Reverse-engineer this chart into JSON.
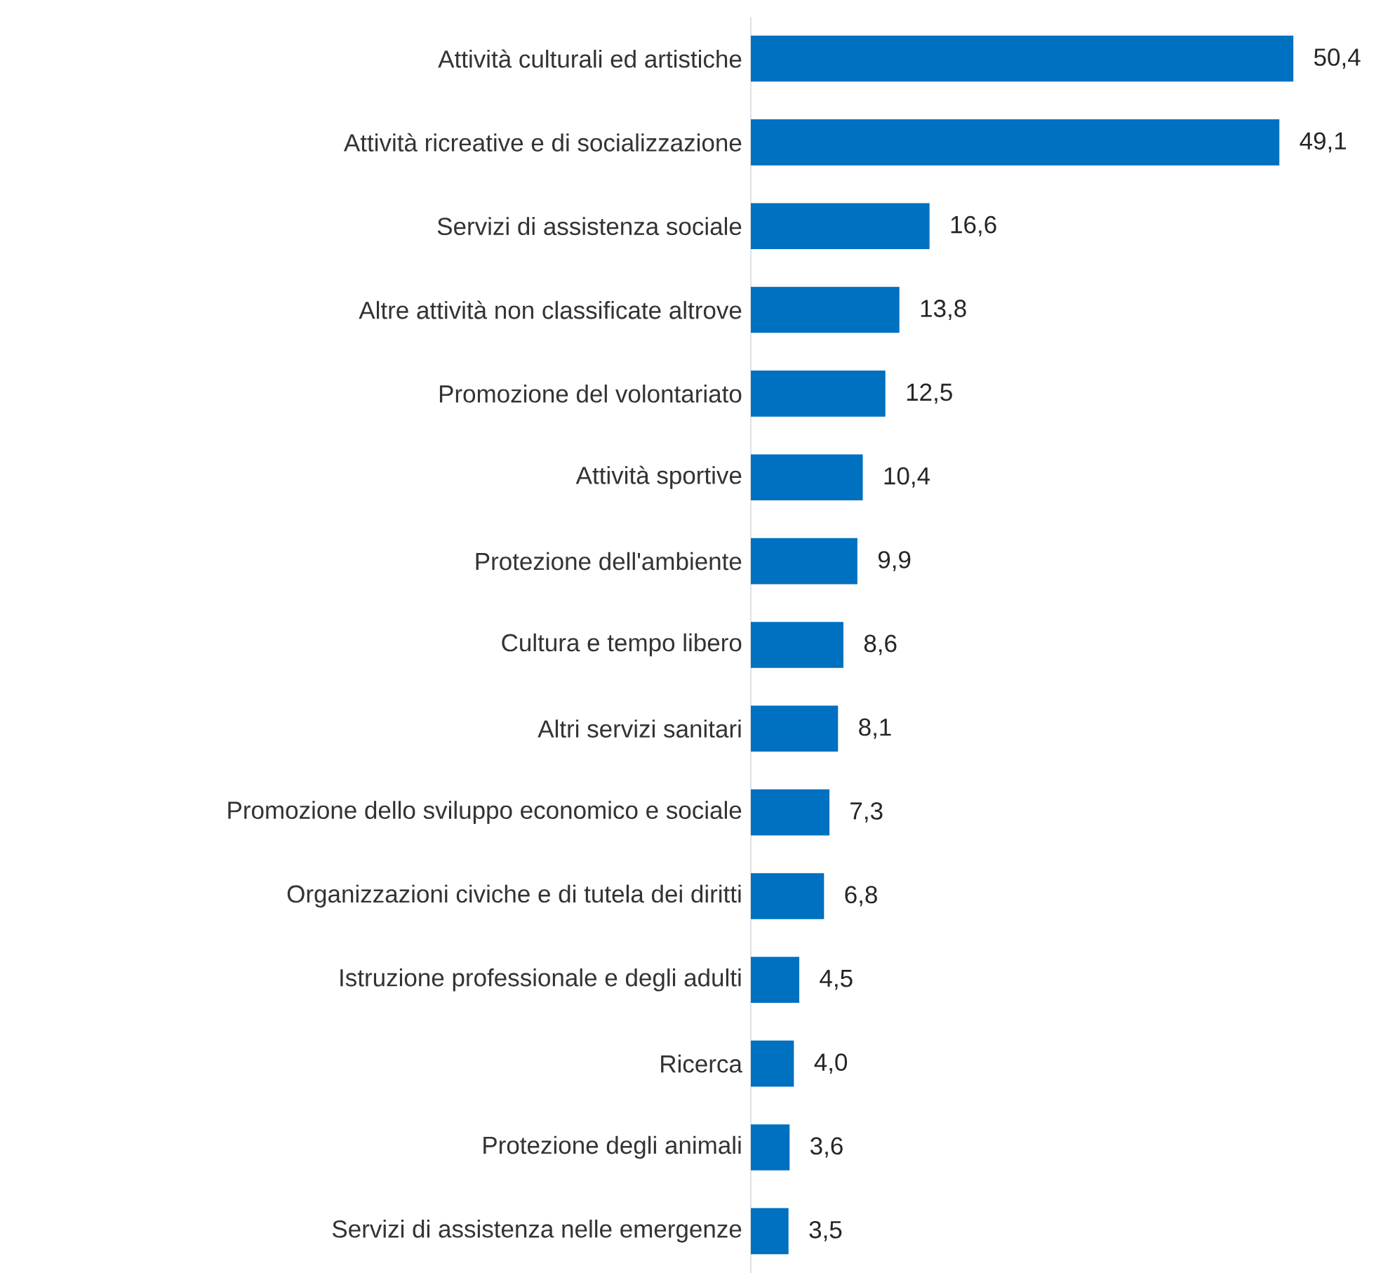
{
  "chart_data": {
    "type": "bar",
    "orientation": "horizontal",
    "color": "#0070c0",
    "categories": [
      "Attività culturali ed artistiche",
      "Attività ricreative e di socializzazione",
      "Servizi di assistenza sociale",
      "Altre attività non classificate altrove",
      "Promozione del volontariato",
      "Attività sportive",
      "Protezione dell'ambiente",
      "Cultura e tempo libero",
      "Altri servizi sanitari",
      "Promozione dello sviluppo economico e sociale",
      "Organizzazioni civiche e di tutela dei diritti",
      "Istruzione professionale e degli adulti",
      "Ricerca",
      "Protezione degli animali",
      "Servizi di assistenza nelle emergenze"
    ],
    "values": [
      50.4,
      49.1,
      16.6,
      13.8,
      12.5,
      10.4,
      9.9,
      8.6,
      8.1,
      7.3,
      6.8,
      4.5,
      4.0,
      3.6,
      3.5
    ],
    "value_labels": [
      "50,4",
      "49,1",
      "16,6",
      "13,8",
      "12,5",
      "10,4",
      "9,9",
      "8,6",
      "8,1",
      "7,3",
      "6,8",
      "4,5",
      "4,0",
      "3,6",
      "3,5"
    ]
  }
}
